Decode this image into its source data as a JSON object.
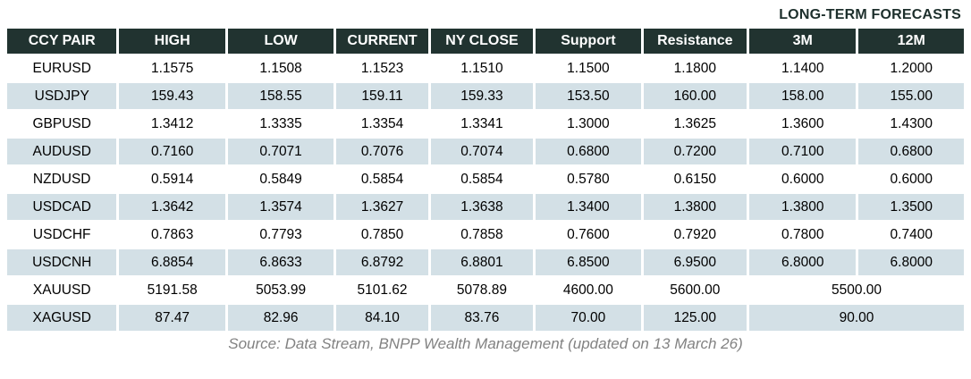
{
  "title_label": "LONG-TERM FORECASTS",
  "chart_data": {
    "type": "table",
    "title": "FX long-term forecasts",
    "columns": [
      "CCY PAIR",
      "HIGH",
      "LOW",
      "CURRENT",
      "NY CLOSE",
      "Support",
      "Resistance",
      "3M",
      "12M"
    ],
    "long_term_forecast_columns": [
      "3M",
      "12M"
    ],
    "rows": [
      {
        "pair": "EURUSD",
        "high": "1.1575",
        "low": "1.1508",
        "current": "1.1523",
        "ny_close": "1.1510",
        "support": "1.1500",
        "resistance": "1.1800",
        "m3": "1.1400",
        "m12": "1.2000"
      },
      {
        "pair": "USDJPY",
        "high": "159.43",
        "low": "158.55",
        "current": "159.11",
        "ny_close": "159.33",
        "support": "153.50",
        "resistance": "160.00",
        "m3": "158.00",
        "m12": "155.00"
      },
      {
        "pair": "GBPUSD",
        "high": "1.3412",
        "low": "1.3335",
        "current": "1.3354",
        "ny_close": "1.3341",
        "support": "1.3000",
        "resistance": "1.3625",
        "m3": "1.3600",
        "m12": "1.4300"
      },
      {
        "pair": "AUDUSD",
        "high": "0.7160",
        "low": "0.7071",
        "current": "0.7076",
        "ny_close": "0.7074",
        "support": "0.6800",
        "resistance": "0.7200",
        "m3": "0.7100",
        "m12": "0.6800"
      },
      {
        "pair": "NZDUSD",
        "high": "0.5914",
        "low": "0.5849",
        "current": "0.5854",
        "ny_close": "0.5854",
        "support": "0.5780",
        "resistance": "0.6150",
        "m3": "0.6000",
        "m12": "0.6000"
      },
      {
        "pair": "USDCAD",
        "high": "1.3642",
        "low": "1.3574",
        "current": "1.3627",
        "ny_close": "1.3638",
        "support": "1.3400",
        "resistance": "1.3800",
        "m3": "1.3800",
        "m12": "1.3500"
      },
      {
        "pair": "USDCHF",
        "high": "0.7863",
        "low": "0.7793",
        "current": "0.7850",
        "ny_close": "0.7858",
        "support": "0.7600",
        "resistance": "0.7920",
        "m3": "0.7800",
        "m12": "0.7400"
      },
      {
        "pair": "USDCNH",
        "high": "6.8854",
        "low": "6.8633",
        "current": "6.8792",
        "ny_close": "6.8801",
        "support": "6.8500",
        "resistance": "6.9500",
        "m3": "6.8000",
        "m12": "6.8000"
      },
      {
        "pair": "XAUUSD",
        "high": "5191.58",
        "low": "5053.99",
        "current": "5101.62",
        "ny_close": "5078.89",
        "support": "4600.00",
        "resistance": "5600.00",
        "forecast": "5500.00"
      },
      {
        "pair": "XAGUSD",
        "high": "87.47",
        "low": "82.96",
        "current": "84.10",
        "ny_close": "83.76",
        "support": "70.00",
        "resistance": "125.00",
        "forecast": "90.00"
      }
    ]
  },
  "footer": {
    "source_note": "Source: Data Stream, BNPP Wealth Management (updated on 13 March 26)"
  },
  "colors": {
    "header_bg": "#213330",
    "row_stripe": "#d3e0e6",
    "header_text": "#ffffff",
    "label_text": "#1d2f2c",
    "source_text": "#828282"
  }
}
